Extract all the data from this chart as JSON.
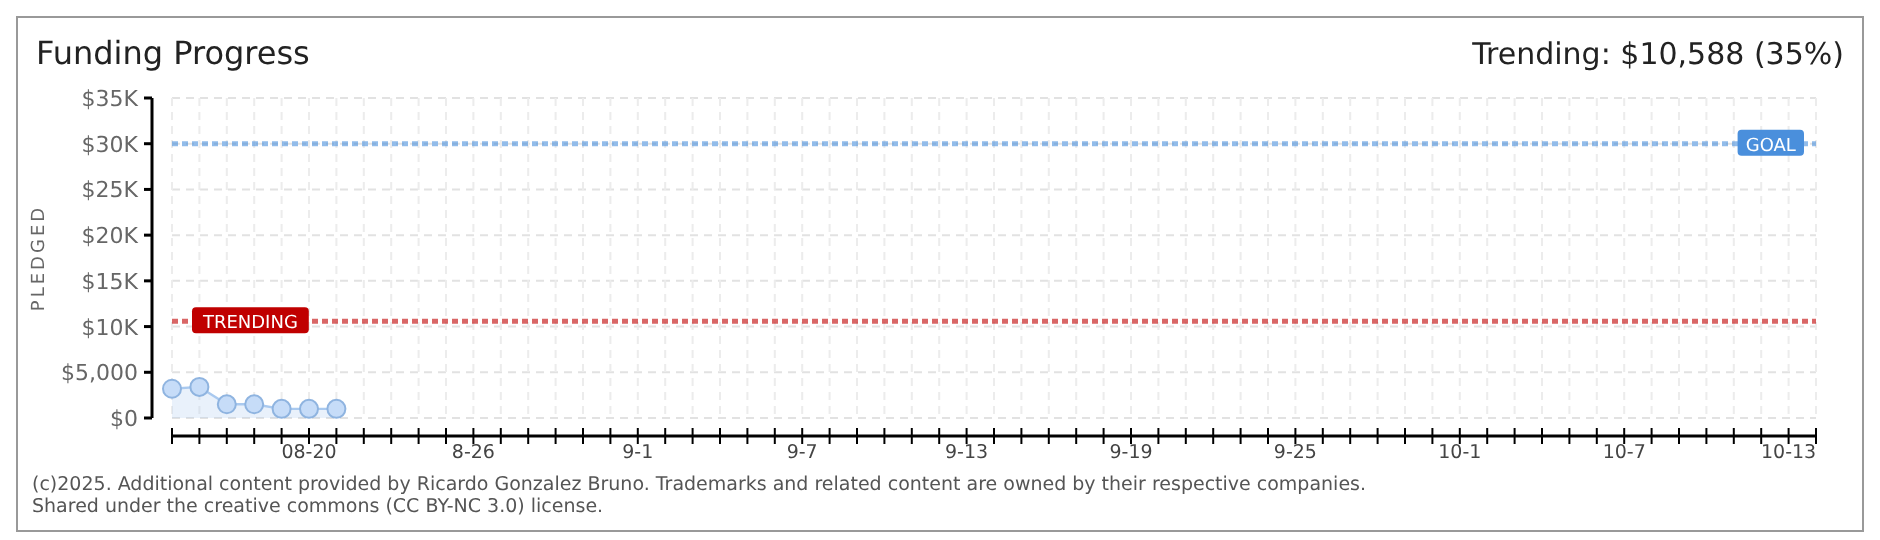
{
  "chart_data": {
    "type": "area",
    "title": "Funding Progress",
    "subtitle": "Trending: $10,588 (35%)",
    "ylabel": "PLEDGED",
    "x": [
      "--08-15",
      "--08-16",
      "--08-17",
      "--08-18",
      "--08-19",
      "--08-20",
      "--08-21"
    ],
    "series": [
      {
        "color": "#a9c9ef",
        "values": [
          3200,
          3400,
          1500,
          1500,
          1000,
          1000,
          1000
        ]
      }
    ],
    "marker": "circle",
    "grid": true,
    "xlim": [
      "--08-15",
      "--10-14"
    ],
    "xticks": [
      {
        "value": "--08-15",
        "label": null
      },
      {
        "value": "--08-16",
        "label": null
      },
      {
        "value": "--08-17",
        "label": null
      },
      {
        "value": "--08-18",
        "label": null
      },
      {
        "value": "--08-19",
        "label": null
      },
      {
        "value": "--08-20",
        "label": "08-20"
      },
      {
        "value": "--08-21",
        "label": null
      },
      {
        "value": "--08-22",
        "label": null
      },
      {
        "value": "--08-23",
        "label": null
      },
      {
        "value": "--08-24",
        "label": null
      },
      {
        "value": "--08-25",
        "label": null
      },
      {
        "value": "--08-26",
        "label": "8-26"
      },
      {
        "value": "--08-27",
        "label": null
      },
      {
        "value": "--08-28",
        "label": null
      },
      {
        "value": "--08-29",
        "label": null
      },
      {
        "value": "--08-30",
        "label": null
      },
      {
        "value": "--08-31",
        "label": null
      },
      {
        "value": "--09-01",
        "label": "9-1"
      },
      {
        "value": "--09-02",
        "label": null
      },
      {
        "value": "--09-03",
        "label": null
      },
      {
        "value": "--09-04",
        "label": null
      },
      {
        "value": "--09-05",
        "label": null
      },
      {
        "value": "--09-06",
        "label": null
      },
      {
        "value": "--09-07",
        "label": "9-7"
      },
      {
        "value": "--09-08",
        "label": null
      },
      {
        "value": "--09-09",
        "label": null
      },
      {
        "value": "--09-10",
        "label": null
      },
      {
        "value": "--09-11",
        "label": null
      },
      {
        "value": "--09-12",
        "label": null
      },
      {
        "value": "--09-13",
        "label": "9-13"
      },
      {
        "value": "--09-14",
        "label": null
      },
      {
        "value": "--09-15",
        "label": null
      },
      {
        "value": "--09-16",
        "label": null
      },
      {
        "value": "--09-17",
        "label": null
      },
      {
        "value": "--09-18",
        "label": null
      },
      {
        "value": "--09-19",
        "label": "9-19"
      },
      {
        "value": "--09-20",
        "label": null
      },
      {
        "value": "--09-21",
        "label": null
      },
      {
        "value": "--09-22",
        "label": null
      },
      {
        "value": "--09-23",
        "label": null
      },
      {
        "value": "--09-24",
        "label": null
      },
      {
        "value": "--09-25",
        "label": "9-25"
      },
      {
        "value": "--09-26",
        "label": null
      },
      {
        "value": "--09-27",
        "label": null
      },
      {
        "value": "--09-28",
        "label": null
      },
      {
        "value": "--09-29",
        "label": null
      },
      {
        "value": "--09-30",
        "label": null
      },
      {
        "value": "--10-01",
        "label": "10-1"
      },
      {
        "value": "--10-02",
        "label": null
      },
      {
        "value": "--10-03",
        "label": null
      },
      {
        "value": "--10-04",
        "label": null
      },
      {
        "value": "--10-05",
        "label": null
      },
      {
        "value": "--10-06",
        "label": null
      },
      {
        "value": "--10-07",
        "label": "10-7"
      },
      {
        "value": "--10-08",
        "label": null
      },
      {
        "value": "--10-09",
        "label": null
      },
      {
        "value": "--10-10",
        "label": null
      },
      {
        "value": "--10-11",
        "label": null
      },
      {
        "value": "--10-12",
        "label": null
      },
      {
        "value": "--10-13",
        "label": "10-13"
      },
      {
        "value": "--10-14",
        "label": null
      }
    ],
    "ylim": [
      0,
      35000
    ],
    "yticks": [
      {
        "value": 0,
        "label": "$0"
      },
      {
        "value": 5000,
        "label": "$5,000"
      },
      {
        "value": 10000,
        "label": "$10K"
      },
      {
        "value": 15000,
        "label": "$15K"
      },
      {
        "value": 20000,
        "label": "$20K"
      },
      {
        "value": 25000,
        "label": "$25K"
      },
      {
        "value": 30000,
        "label": "$30K"
      },
      {
        "value": 35000,
        "label": "$35K"
      }
    ],
    "ref_lines": [
      {
        "axis": "y",
        "value": 30000,
        "label": "GOAL",
        "color": "#4a8fdc",
        "line_style": "dotted"
      },
      {
        "axis": "y",
        "value": 10588,
        "label": "TRENDING",
        "color": "#c00000",
        "line_style": "dotted"
      }
    ],
    "annotations": [
      "(c)2025. Additional content provided by Ricardo Gonzalez Bruno. Trademarks and related content are owned by their respective companies.",
      "Shared under the creative commons (CC BY-NC 3.0) license."
    ]
  }
}
